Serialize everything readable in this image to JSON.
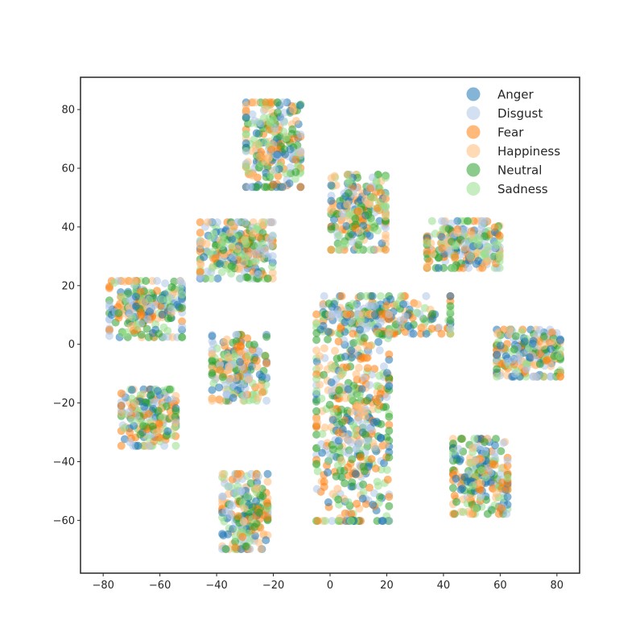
{
  "chart_data": {
    "type": "scatter",
    "title": "",
    "xlabel": "",
    "ylabel": "",
    "xlim": [
      -88,
      88
    ],
    "ylim": [
      -78,
      91
    ],
    "xticks": [
      -80,
      -60,
      -40,
      -20,
      0,
      20,
      40,
      60,
      80
    ],
    "yticks": [
      -60,
      -40,
      -20,
      0,
      20,
      40,
      60,
      80
    ],
    "grid": false,
    "legend_position": "top-right",
    "series": [
      {
        "name": "Anger",
        "color": "#1f77b4"
      },
      {
        "name": "Disgust",
        "color": "#aec7e8"
      },
      {
        "name": "Fear",
        "color": "#ff7f0e"
      },
      {
        "name": "Happiness",
        "color": "#ffbb78"
      },
      {
        "name": "Neutral",
        "color": "#2ca02c"
      },
      {
        "name": "Sadness",
        "color": "#98df8a"
      }
    ],
    "clusters": [
      {
        "center": [
          -20,
          68
        ],
        "spread": [
          6,
          9
        ],
        "points": 260
      },
      {
        "center": [
          10,
          45
        ],
        "spread": [
          6,
          8
        ],
        "points": 230
      },
      {
        "center": [
          47,
          34
        ],
        "spread": [
          8,
          5
        ],
        "points": 230
      },
      {
        "center": [
          -33,
          32
        ],
        "spread": [
          8,
          6
        ],
        "points": 260
      },
      {
        "center": [
          -65,
          12
        ],
        "spread": [
          8,
          6
        ],
        "points": 240
      },
      {
        "center": [
          70,
          -3
        ],
        "spread": [
          7,
          5
        ],
        "points": 220
      },
      {
        "center": [
          -32,
          -8
        ],
        "spread": [
          6,
          7
        ],
        "points": 200
      },
      {
        "center": [
          -64,
          -25
        ],
        "spread": [
          6,
          6
        ],
        "points": 200
      },
      {
        "center": [
          53,
          -45
        ],
        "spread": [
          6,
          8
        ],
        "points": 230
      },
      {
        "center": [
          -30,
          -57
        ],
        "spread": [
          5,
          8
        ],
        "points": 220
      },
      {
        "center": [
          20,
          10
        ],
        "spread": [
          14,
          4
        ],
        "points": 200
      },
      {
        "center": [
          8,
          -25
        ],
        "spread": [
          8,
          22
        ],
        "points": 520
      }
    ]
  }
}
